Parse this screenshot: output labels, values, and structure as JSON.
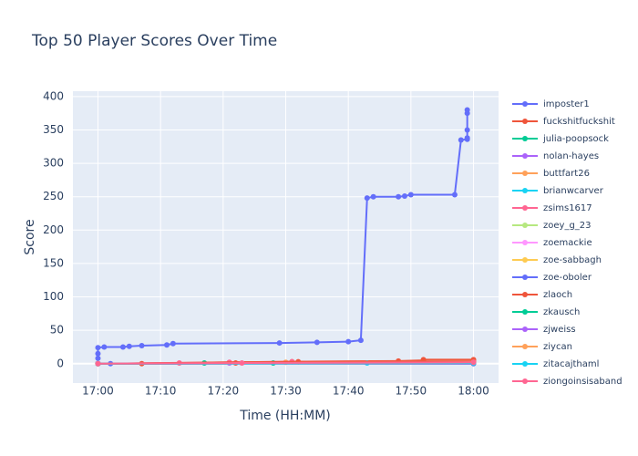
{
  "chart_data": {
    "type": "line",
    "title": "Top 50 Player Scores Over Time",
    "x_label": "Time (HH:MM)",
    "y_label": "Score",
    "xlim": [
      "16:56",
      "18:04"
    ],
    "xticks": [
      "17:00",
      "17:10",
      "17:20",
      "17:30",
      "17:40",
      "17:50",
      "18:00"
    ],
    "ylim": [
      -29,
      408
    ],
    "yticks": [
      0,
      50,
      100,
      150,
      200,
      250,
      300,
      350,
      400
    ],
    "grid": true,
    "legend": "right",
    "series": [
      {
        "name": "imposter1",
        "color": "#636efa",
        "x": [
          "17:00",
          "17:00",
          "17:00",
          "17:00",
          "17:01",
          "17:04",
          "17:05",
          "17:07",
          "17:11",
          "17:12",
          "17:29",
          "17:35",
          "17:40",
          "17:42",
          "17:43",
          "17:44",
          "17:48",
          "17:49",
          "17:50",
          "17:57",
          "17:58",
          "17:59",
          "17:59",
          "17:59",
          "17:59",
          "17:59"
        ],
        "values": [
          0,
          8,
          15,
          24,
          25,
          25,
          26,
          27,
          28,
          30,
          31,
          32,
          33,
          35,
          248,
          250,
          250,
          251,
          253,
          253,
          335,
          336,
          338,
          350,
          375,
          380
        ]
      },
      {
        "name": "fuckshitfuckshit",
        "color": "#EF553B",
        "x": [
          "17:07",
          "17:22",
          "17:31",
          "17:48",
          "17:52",
          "17:52",
          "18:00"
        ],
        "values": [
          0,
          1,
          3,
          4,
          5,
          6,
          6
        ]
      },
      {
        "name": "julia-poopsock",
        "color": "#00cc96",
        "x": [
          "17:00",
          "17:17",
          "17:28",
          "18:00"
        ],
        "values": [
          0,
          1,
          1,
          2
        ]
      },
      {
        "name": "nolan-hayes",
        "color": "#ab63fa",
        "x": [
          "17:00",
          "17:21",
          "18:00"
        ],
        "values": [
          0,
          1,
          2
        ]
      },
      {
        "name": "buttfart26",
        "color": "#FFA15A",
        "x": [
          "17:00",
          "17:30",
          "18:00"
        ],
        "values": [
          0,
          2,
          3
        ]
      },
      {
        "name": "brianwcarver",
        "color": "#19d3f3",
        "x": [
          "17:00",
          "17:43",
          "18:00"
        ],
        "values": [
          0,
          1,
          1
        ]
      },
      {
        "name": "zsims1617",
        "color": "#FF6692",
        "x": [
          "17:00",
          "17:13",
          "17:21",
          "17:31",
          "18:00"
        ],
        "values": [
          0,
          1,
          2,
          3,
          3
        ]
      },
      {
        "name": "zoey_g_23",
        "color": "#B6E880",
        "x": [
          "17:00",
          "18:00"
        ],
        "values": [
          0,
          1
        ]
      },
      {
        "name": "zoemackie",
        "color": "#FF97FF",
        "x": [
          "17:00",
          "18:00"
        ],
        "values": [
          0,
          1
        ]
      },
      {
        "name": "zoe-sabbagh",
        "color": "#FECB52",
        "x": [
          "17:00",
          "18:00"
        ],
        "values": [
          0,
          0
        ]
      },
      {
        "name": "zoe-oboler",
        "color": "#636efa",
        "x": [
          "17:00",
          "17:02",
          "18:00"
        ],
        "values": [
          0,
          0,
          0
        ]
      },
      {
        "name": "zlaoch",
        "color": "#EF553B",
        "x": [
          "17:00",
          "17:32",
          "18:00"
        ],
        "values": [
          0,
          3,
          3
        ]
      },
      {
        "name": "zkausch",
        "color": "#00cc96",
        "x": [
          "17:00",
          "18:00"
        ],
        "values": [
          0,
          1
        ]
      },
      {
        "name": "zjweiss",
        "color": "#ab63fa",
        "x": [
          "17:00",
          "18:00"
        ],
        "values": [
          0,
          1
        ]
      },
      {
        "name": "ziycan",
        "color": "#FFA15A",
        "x": [
          "17:00",
          "18:00"
        ],
        "values": [
          0,
          2
        ]
      },
      {
        "name": "zitacajthaml",
        "color": "#19d3f3",
        "x": [
          "17:00",
          "18:00"
        ],
        "values": [
          0,
          1
        ]
      },
      {
        "name": "ziongoinsisaband",
        "color": "#FF6692",
        "x": [
          "17:00",
          "17:23",
          "18:00"
        ],
        "values": [
          0,
          1,
          2
        ]
      }
    ]
  }
}
